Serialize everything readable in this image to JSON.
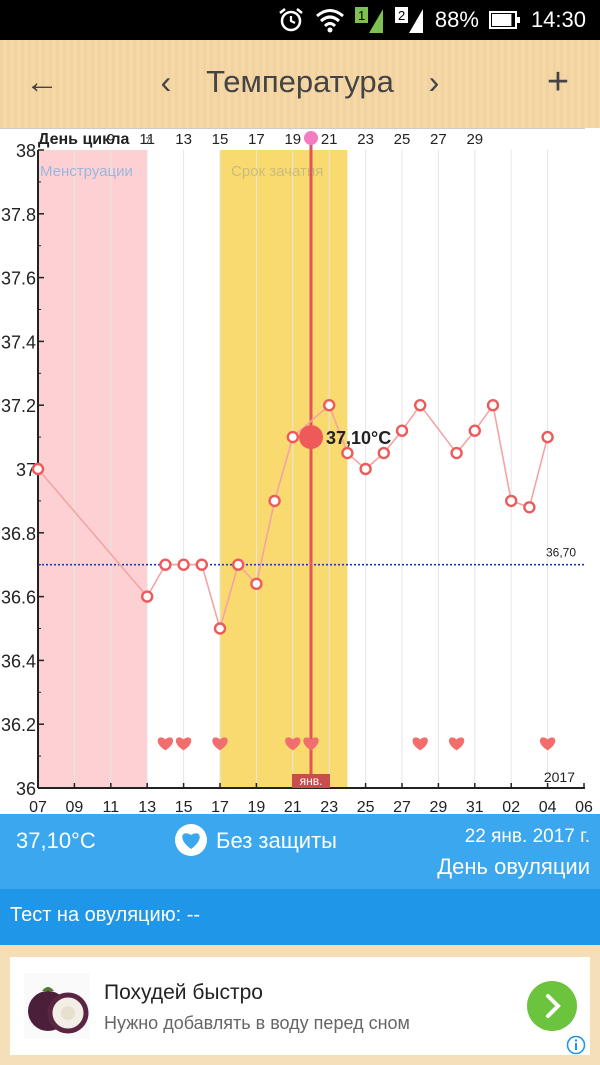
{
  "status_bar": {
    "alarm_icon": "alarm-clock-icon",
    "wifi_icon": "wifi-icon",
    "sim1_label": "1",
    "sim2_label": "2",
    "battery_percent": "88%",
    "battery_level": 0.88,
    "time": "14:30"
  },
  "app_bar": {
    "back_icon": "arrow-left-icon",
    "prev_icon": "chevron-left-icon",
    "title": "Температура",
    "next_icon": "chevron-right-icon",
    "add_icon": "plus-icon"
  },
  "chart_data": {
    "type": "line",
    "cycle_day_label": "День цикла",
    "cycle_day_ticks": [
      "7",
      "9",
      "11",
      "13",
      "15",
      "17",
      "19",
      "21",
      "23",
      "25",
      "27",
      "29"
    ],
    "y_ticks": [
      "36",
      "36.2",
      "36.4",
      "36.6",
      "36.8",
      "37",
      "37.2",
      "37.4",
      "37.6",
      "37.8",
      "38"
    ],
    "ylim": [
      36,
      38
    ],
    "x_date_ticks": [
      "07",
      "09",
      "11",
      "13",
      "15",
      "17",
      "19",
      "21",
      "23",
      "25",
      "27",
      "29",
      "31",
      "02",
      "04",
      "06"
    ],
    "year_label": "2017",
    "month_marker_label": "янв.",
    "menstruation_label": "Менструации",
    "fertile_label": "Срок зачатия",
    "menstruation_range_days": [
      7,
      13
    ],
    "fertile_range_days": [
      17,
      24
    ],
    "coverline_value": 36.7,
    "coverline_label": "36,70",
    "selected_day": 22,
    "selected_value": 37.1,
    "selected_label": "37,10°C",
    "days": [
      7,
      13,
      14,
      15,
      16,
      17,
      18,
      19,
      20,
      21,
      23,
      24,
      25,
      26,
      27,
      28,
      30,
      31,
      32,
      33,
      34,
      35
    ],
    "temperatures": [
      37.0,
      36.6,
      36.7,
      36.7,
      36.7,
      36.5,
      36.7,
      36.64,
      36.9,
      37.1,
      37.2,
      37.05,
      37.0,
      37.05,
      37.12,
      37.2,
      37.05,
      37.12,
      37.2,
      36.9,
      36.88,
      37.1
    ],
    "intercourse_days": [
      14,
      15,
      17,
      21,
      22,
      28,
      30,
      35
    ],
    "colors": {
      "menstruation": "#fdd1d3",
      "fertile": "#f8da6f",
      "line": "#f4a4a4",
      "point": "#ee5a5a",
      "coverline": "#1a3bb4",
      "heart": "#f26d6d",
      "selected_line": "#e05555",
      "gridline": "#e6e6e6"
    }
  },
  "info_bar": {
    "temperature": "37,10°C",
    "protection_icon": "heart-icon",
    "protection": "Без защиты",
    "date": "22 янв. 2017 г.",
    "day_type": "День овуляции"
  },
  "test_bar": {
    "label": "Тест на овуляцию: --"
  },
  "ad": {
    "image_icon": "mangosteen-fruit-icon",
    "title": "Похудей быстро",
    "subtitle": "Нужно добавлять в воду перед сном",
    "go_icon": "chevron-right-icon",
    "info_icon": "info-icon"
  }
}
